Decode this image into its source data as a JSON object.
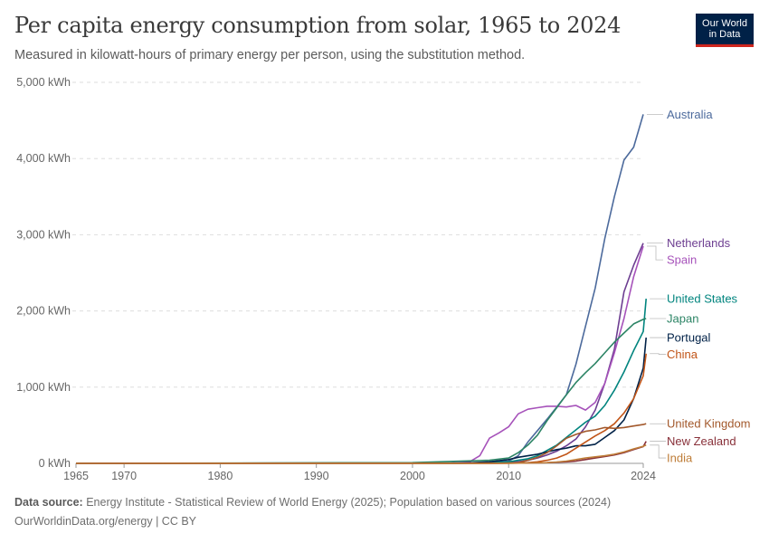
{
  "title": "Per capita energy consumption from solar, 1965 to 2024",
  "subtitle": "Measured in kilowatt-hours of primary energy per person, using the substitution method.",
  "logo": {
    "line1": "Our World",
    "line2": "in Data",
    "bg": "#002147",
    "accent": "#ce261e"
  },
  "footer": {
    "source_label": "Data source:",
    "source_text": "Energy Institute - Statistical Review of World Energy (2025); Population based on various sources (2024)",
    "url_license": "OurWorldinData.org/energy | CC BY"
  },
  "chart_data": {
    "type": "line",
    "title": "Per capita energy consumption from solar, 1965 to 2024",
    "xlabel": "",
    "ylabel": "",
    "xlim": [
      1965,
      2024
    ],
    "ylim": [
      0,
      5000
    ],
    "grid": "horizontal dashed",
    "legend": "right-side line labels",
    "x_ticks": [
      1965,
      1970,
      1980,
      1990,
      2000,
      2010,
      2024
    ],
    "y_ticks": [
      0,
      1000,
      2000,
      3000,
      4000,
      5000
    ],
    "y_tick_labels": [
      "0 kWh",
      "1,000 kWh",
      "2,000 kWh",
      "3,000 kWh",
      "4,000 kWh",
      "5,000 kWh"
    ],
    "series": [
      {
        "name": "Australia",
        "color": "#4c6a9c",
        "points": [
          [
            1965,
            0
          ],
          [
            2005,
            2
          ],
          [
            2008,
            8
          ],
          [
            2010,
            30
          ],
          [
            2011,
            100
          ],
          [
            2012,
            280
          ],
          [
            2013,
            430
          ],
          [
            2014,
            580
          ],
          [
            2015,
            740
          ],
          [
            2016,
            900
          ],
          [
            2017,
            1300
          ],
          [
            2018,
            1800
          ],
          [
            2019,
            2300
          ],
          [
            2020,
            2950
          ],
          [
            2021,
            3500
          ],
          [
            2022,
            3980
          ],
          [
            2023,
            4150
          ],
          [
            2024,
            4580
          ]
        ]
      },
      {
        "name": "Netherlands",
        "color": "#6d3e91",
        "points": [
          [
            1965,
            0
          ],
          [
            2005,
            2
          ],
          [
            2008,
            5
          ],
          [
            2010,
            10
          ],
          [
            2011,
            20
          ],
          [
            2012,
            40
          ],
          [
            2013,
            70
          ],
          [
            2014,
            110
          ],
          [
            2015,
            160
          ],
          [
            2016,
            230
          ],
          [
            2017,
            320
          ],
          [
            2018,
            480
          ],
          [
            2019,
            700
          ],
          [
            2020,
            1050
          ],
          [
            2021,
            1500
          ],
          [
            2022,
            2250
          ],
          [
            2023,
            2600
          ],
          [
            2024,
            2890
          ]
        ]
      },
      {
        "name": "Spain",
        "color": "#a652ba",
        "points": [
          [
            1965,
            0
          ],
          [
            2004,
            5
          ],
          [
            2006,
            25
          ],
          [
            2007,
            100
          ],
          [
            2008,
            330
          ],
          [
            2009,
            400
          ],
          [
            2010,
            480
          ],
          [
            2011,
            650
          ],
          [
            2012,
            710
          ],
          [
            2013,
            730
          ],
          [
            2014,
            750
          ],
          [
            2015,
            750
          ],
          [
            2016,
            740
          ],
          [
            2017,
            760
          ],
          [
            2018,
            700
          ],
          [
            2019,
            800
          ],
          [
            2020,
            1050
          ],
          [
            2021,
            1450
          ],
          [
            2022,
            1900
          ],
          [
            2023,
            2450
          ],
          [
            2024,
            2850
          ]
        ]
      },
      {
        "name": "United States",
        "color": "#00847e",
        "points": [
          [
            1965,
            0
          ],
          [
            2005,
            5
          ],
          [
            2008,
            10
          ],
          [
            2010,
            20
          ],
          [
            2011,
            40
          ],
          [
            2012,
            60
          ],
          [
            2013,
            100
          ],
          [
            2014,
            170
          ],
          [
            2015,
            240
          ],
          [
            2016,
            340
          ],
          [
            2017,
            440
          ],
          [
            2018,
            540
          ],
          [
            2019,
            620
          ],
          [
            2020,
            760
          ],
          [
            2021,
            960
          ],
          [
            2022,
            1200
          ],
          [
            2023,
            1480
          ],
          [
            2024,
            1730
          ],
          [
            2024.3,
            2160
          ]
        ]
      },
      {
        "name": "Japan",
        "color": "#2c8465",
        "points": [
          [
            1965,
            0
          ],
          [
            2000,
            10
          ],
          [
            2005,
            30
          ],
          [
            2008,
            40
          ],
          [
            2010,
            70
          ],
          [
            2011,
            140
          ],
          [
            2012,
            240
          ],
          [
            2013,
            370
          ],
          [
            2014,
            560
          ],
          [
            2015,
            730
          ],
          [
            2016,
            900
          ],
          [
            2017,
            1060
          ],
          [
            2018,
            1190
          ],
          [
            2019,
            1310
          ],
          [
            2020,
            1450
          ],
          [
            2021,
            1590
          ],
          [
            2022,
            1710
          ],
          [
            2023,
            1830
          ],
          [
            2024,
            1890
          ],
          [
            2024.3,
            1900
          ]
        ]
      },
      {
        "name": "Portugal",
        "color": "#002147",
        "points": [
          [
            1965,
            0
          ],
          [
            2005,
            2
          ],
          [
            2008,
            20
          ],
          [
            2010,
            50
          ],
          [
            2011,
            80
          ],
          [
            2012,
            100
          ],
          [
            2013,
            120
          ],
          [
            2014,
            150
          ],
          [
            2015,
            180
          ],
          [
            2016,
            200
          ],
          [
            2017,
            230
          ],
          [
            2018,
            230
          ],
          [
            2019,
            250
          ],
          [
            2020,
            340
          ],
          [
            2021,
            430
          ],
          [
            2022,
            570
          ],
          [
            2023,
            850
          ],
          [
            2024,
            1250
          ],
          [
            2024.3,
            1650
          ]
        ]
      },
      {
        "name": "China",
        "color": "#c15417",
        "points": [
          [
            1965,
            0
          ],
          [
            2008,
            1
          ],
          [
            2010,
            3
          ],
          [
            2011,
            5
          ],
          [
            2012,
            10
          ],
          [
            2013,
            20
          ],
          [
            2014,
            40
          ],
          [
            2015,
            70
          ],
          [
            2016,
            120
          ],
          [
            2017,
            200
          ],
          [
            2018,
            280
          ],
          [
            2019,
            360
          ],
          [
            2020,
            430
          ],
          [
            2021,
            520
          ],
          [
            2022,
            660
          ],
          [
            2023,
            850
          ],
          [
            2024,
            1150
          ],
          [
            2024.3,
            1440
          ]
        ]
      },
      {
        "name": "United Kingdom",
        "color": "#a2582b",
        "points": [
          [
            1965,
            0
          ],
          [
            2008,
            1
          ],
          [
            2010,
            3
          ],
          [
            2011,
            10
          ],
          [
            2012,
            40
          ],
          [
            2013,
            80
          ],
          [
            2014,
            140
          ],
          [
            2015,
            230
          ],
          [
            2016,
            330
          ],
          [
            2017,
            380
          ],
          [
            2018,
            420
          ],
          [
            2019,
            440
          ],
          [
            2020,
            470
          ],
          [
            2021,
            460
          ],
          [
            2022,
            470
          ],
          [
            2023,
            490
          ],
          [
            2024,
            510
          ],
          [
            2024.3,
            520
          ]
        ]
      },
      {
        "name": "New Zealand",
        "color": "#883039",
        "points": [
          [
            1965,
            0
          ],
          [
            2010,
            2
          ],
          [
            2012,
            5
          ],
          [
            2014,
            10
          ],
          [
            2016,
            20
          ],
          [
            2017,
            30
          ],
          [
            2018,
            50
          ],
          [
            2019,
            70
          ],
          [
            2020,
            90
          ],
          [
            2021,
            110
          ],
          [
            2022,
            140
          ],
          [
            2023,
            180
          ],
          [
            2024,
            220
          ],
          [
            2024.3,
            290
          ]
        ]
      },
      {
        "name": "India",
        "color": "#be7d38",
        "points": [
          [
            1965,
            0
          ],
          [
            2010,
            1
          ],
          [
            2012,
            5
          ],
          [
            2014,
            10
          ],
          [
            2015,
            18
          ],
          [
            2016,
            30
          ],
          [
            2017,
            50
          ],
          [
            2018,
            70
          ],
          [
            2019,
            85
          ],
          [
            2020,
            100
          ],
          [
            2021,
            120
          ],
          [
            2022,
            150
          ],
          [
            2023,
            190
          ],
          [
            2024,
            225
          ],
          [
            2024.3,
            240
          ]
        ]
      }
    ]
  }
}
